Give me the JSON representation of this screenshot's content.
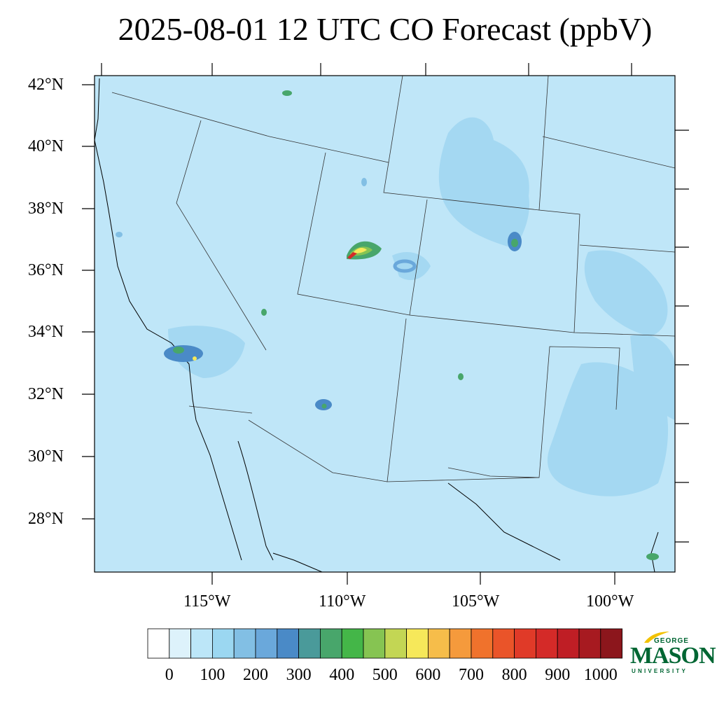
{
  "title": "2025-08-01 12 UTC CO Forecast (ppbV)",
  "lat_labels": [
    "42°N",
    "40°N",
    "38°N",
    "36°N",
    "34°N",
    "32°N",
    "30°N",
    "28°N"
  ],
  "lon_labels": [
    "115°W",
    "110°W",
    "105°W",
    "100°W"
  ],
  "colorbar": {
    "colors": [
      "#ffffff",
      "#ddf2fb",
      "#bce6f8",
      "#9bd7f1",
      "#82bfe4",
      "#6aa8db",
      "#4a8ac7",
      "#4a9a9a",
      "#48a66b",
      "#44b648",
      "#86c452",
      "#c3d654",
      "#f6e85a",
      "#f6bd4a",
      "#f59a3c",
      "#f0722c",
      "#ea5429",
      "#e03a28",
      "#d42a28",
      "#bf1e25",
      "#a71a20",
      "#8c161c"
    ],
    "labels": [
      "0",
      "100",
      "200",
      "300",
      "400",
      "500",
      "600",
      "700",
      "800",
      "900",
      "1000"
    ]
  },
  "colors": {
    "background_field": "#bfe6f8",
    "moderate_field": "#a4d8f2",
    "hotspot_high": "#d42a28",
    "hotspot_mid": "#f6e85a",
    "hotspot_low": "#48a66b"
  },
  "logo": {
    "top_word": "GEORGE",
    "main_word": "MASON",
    "bottom_word": "UNIVERSITY"
  }
}
